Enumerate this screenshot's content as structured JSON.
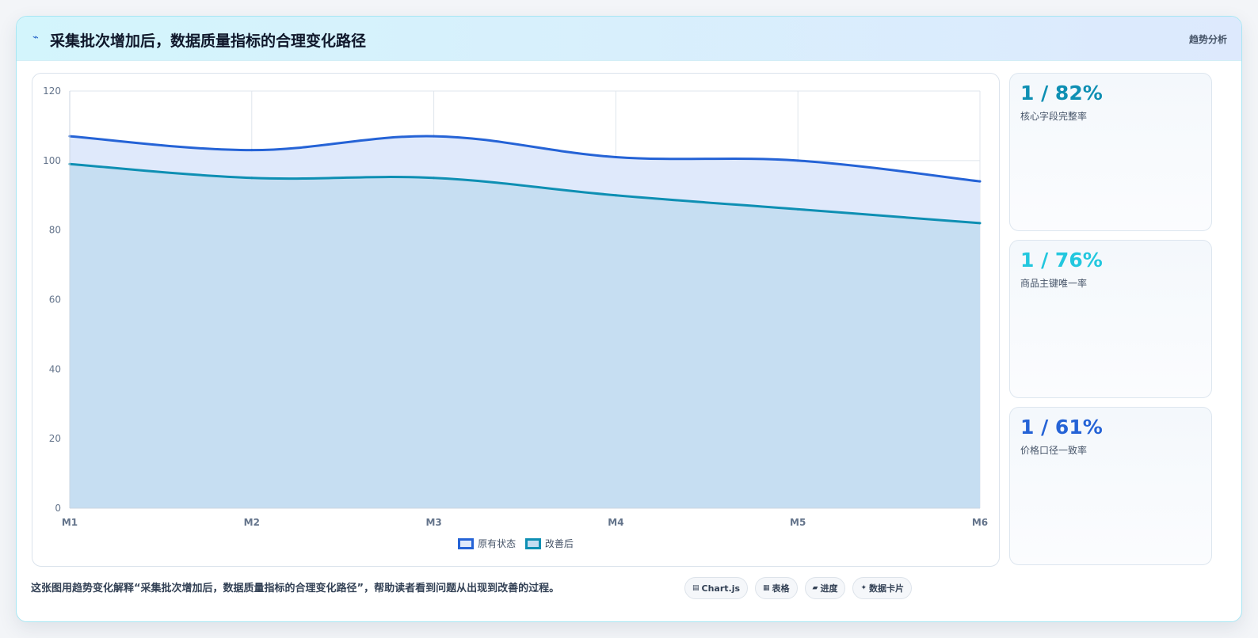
{
  "header": {
    "icon": "sparkle-icon",
    "icon_glyph": "⌁",
    "title": "采集批次增加后，数据质量指标的合理变化路径",
    "tag": "趋势分析"
  },
  "chart_data": {
    "type": "area",
    "categories": [
      "M1",
      "M2",
      "M3",
      "M4",
      "M5",
      "M6"
    ],
    "series": [
      {
        "name": "原有状态",
        "values": [
          107,
          103,
          107,
          101,
          100,
          94
        ],
        "color": "#2563d6",
        "fill": "#dfe9fb"
      },
      {
        "name": "改善后",
        "values": [
          99,
          95,
          95,
          90,
          86,
          82
        ],
        "color": "#0e8fb3",
        "fill": "#c4ddf1"
      }
    ],
    "ylim": [
      0,
      120
    ],
    "yticks": [
      0,
      20,
      40,
      60,
      80,
      100,
      120
    ],
    "grid": true,
    "legend": "bottom",
    "title": "",
    "xlabel": "",
    "ylabel": ""
  },
  "kpis": [
    {
      "value": "1 / 82%",
      "label": "核心字段完整率",
      "color": "#0e8fb3"
    },
    {
      "value": "1 / 76%",
      "label": "商品主键唯一率",
      "color": "#22c7de"
    },
    {
      "value": "1 / 61%",
      "label": "价格口径一致率",
      "color": "#2563d6"
    }
  ],
  "footer": {
    "text": "这张图用趋势变化解释“采集批次增加后，数据质量指标的合理变化路径”，帮助读者看到问题从出现到改善的过程。",
    "chips": [
      {
        "icon": "chart-icon",
        "glyph": "▤",
        "label": "Chart.js"
      },
      {
        "icon": "table-icon",
        "glyph": "▦",
        "label": "表格"
      },
      {
        "icon": "progress-icon",
        "glyph": "▰",
        "label": "进度"
      },
      {
        "icon": "card-icon",
        "glyph": "✦",
        "label": "数据卡片"
      }
    ]
  }
}
